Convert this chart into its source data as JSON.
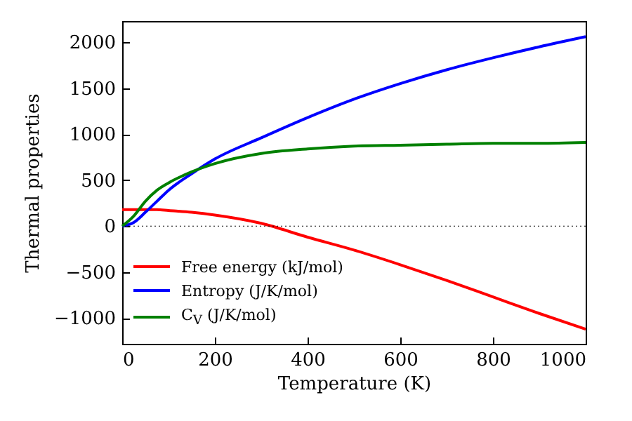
{
  "chart_data": {
    "type": "line",
    "xlabel": "Temperature (K)",
    "ylabel": "Thermal properties",
    "x": [
      0,
      25,
      50,
      75,
      100,
      150,
      200,
      300,
      400,
      500,
      600,
      700,
      800,
      900,
      1000
    ],
    "series": [
      {
        "name": "Free energy (kJ/mol)",
        "color": "#ff0000",
        "values": [
          180,
          180,
          180,
          180,
          170,
          150,
          120,
          30,
          -120,
          -260,
          -420,
          -590,
          -770,
          -950,
          -1120
        ]
      },
      {
        "name": "Entropy (J/K/mol)",
        "color": "#0000ff",
        "values": [
          0,
          40,
          150,
          270,
          390,
          570,
          730,
          960,
          1180,
          1380,
          1550,
          1700,
          1830,
          1950,
          2060
        ]
      },
      {
        "name": "C$_{V}$ (J/K/mol)",
        "color": "#008000",
        "values": [
          0,
          110,
          270,
          390,
          470,
          590,
          680,
          790,
          840,
          870,
          880,
          890,
          900,
          900,
          910
        ]
      }
    ],
    "xlim": [
      0,
      1000
    ],
    "xticks": [
      0,
      200,
      400,
      600,
      800,
      1000
    ],
    "ylim": [
      -1280,
      2230
    ],
    "yticks": [
      -1000,
      -500,
      0,
      500,
      1000,
      1500,
      2000
    ],
    "ref_lines": [
      {
        "axis": "y",
        "value": 0,
        "color": "#000000",
        "line_style": "dotted"
      }
    ],
    "legend": "lower left",
    "grid": false,
    "marker": "none",
    "line_style": "solid"
  }
}
